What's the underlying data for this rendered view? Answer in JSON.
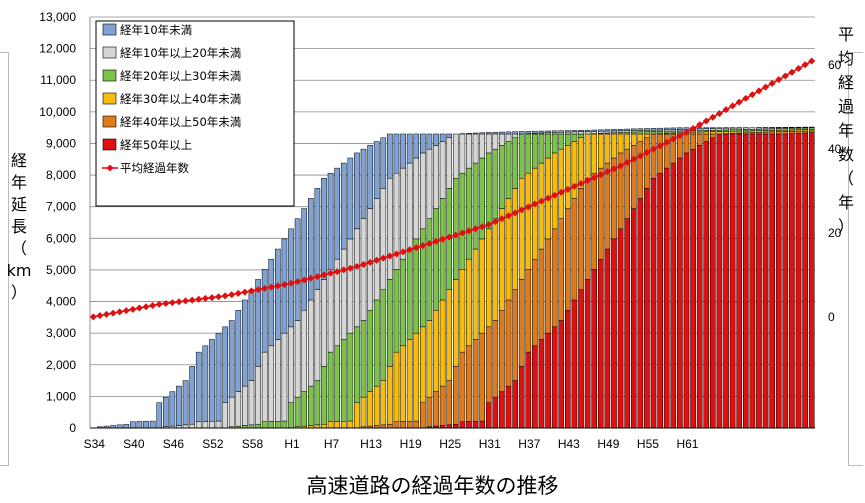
{
  "caption": "高速道路の経過年数の推移",
  "chart_data": {
    "type": "bar",
    "stacked": true,
    "x_tick_labels": [
      "S34",
      "S40",
      "S46",
      "S52",
      "S58",
      "H1",
      "H7",
      "H13",
      "H19",
      "H25",
      "H31",
      "H37",
      "H43",
      "H49",
      "H55",
      "H61"
    ],
    "x_start_label": "S34",
    "n_years": 110,
    "y_left": {
      "label_chars": [
        "経",
        "年",
        "延",
        "長",
        "（",
        "km",
        "）"
      ],
      "ticks": [
        "0",
        "1,000",
        "2,000",
        "3,000",
        "4,000",
        "5,000",
        "6,000",
        "7,000",
        "8,000",
        "9,000",
        "10,000",
        "11,000",
        "12,000",
        "13,000"
      ],
      "ylim": [
        0,
        13000
      ]
    },
    "y_right": {
      "label_chars": [
        "平",
        "均",
        "経",
        "過",
        "年",
        "数",
        "（",
        "年",
        "）"
      ],
      "ticks": [
        "0",
        "20",
        "40",
        "60"
      ],
      "ylim": [
        -26.5,
        71.5
      ]
    },
    "legend_position": "top-left",
    "series": [
      {
        "name": "経年10年未満",
        "color": "#7fa3d4"
      },
      {
        "name": "経年10年以上20年未満",
        "color": "#d6d6d6"
      },
      {
        "name": "経年20年以上30年未満",
        "color": "#7cc34b"
      },
      {
        "name": "経年30年以上40年未満",
        "color": "#f7bd0c"
      },
      {
        "name": "経年40年以上50年未満",
        "color": "#e07b1a"
      },
      {
        "name": "経年50年以上",
        "color": "#e01010"
      }
    ],
    "cumulative_total_km": {
      "note_years": [
        0,
        1,
        5,
        6,
        9,
        10,
        14,
        16,
        21,
        25,
        30,
        35,
        40,
        45,
        50,
        55,
        60,
        65,
        70,
        75,
        80,
        85,
        90,
        95,
        100,
        109
      ],
      "values": [
        0,
        40,
        120,
        200,
        220,
        800,
        1500,
        2400,
        3400,
        4700,
        6300,
        7900,
        8700,
        9300,
        9300,
        9300,
        9350,
        9380,
        9400,
        9420,
        9450,
        9480,
        9500,
        9500,
        9500,
        9520
      ]
    },
    "average_age_years": {
      "name": "平均経過年数",
      "color": "#e01010",
      "points_years": [
        0,
        10,
        20,
        30,
        40,
        50,
        60,
        70,
        80,
        90,
        100,
        109
      ],
      "values": [
        0,
        3,
        5,
        8,
        12,
        17,
        22,
        29,
        36,
        44,
        53,
        61
      ]
    }
  }
}
